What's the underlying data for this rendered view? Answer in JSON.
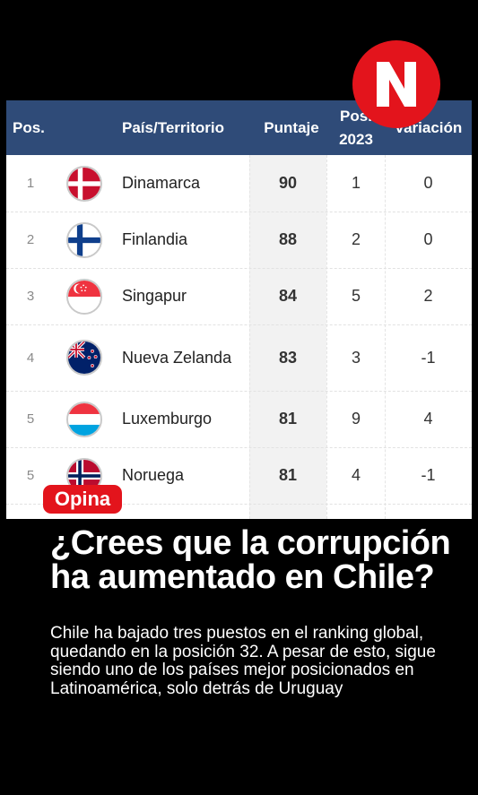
{
  "table": {
    "headers": {
      "pos": "Pos.",
      "country": "País/Territorio",
      "score": "Puntaje",
      "pos2023_line1": "Pos.",
      "pos2023_line2": "2023",
      "variation": "Variación"
    },
    "rows": [
      {
        "pos": "1",
        "country": "Dinamarca",
        "score": "90",
        "pos2023": "1",
        "variation": "0",
        "flag": "denmark-flag-icon"
      },
      {
        "pos": "2",
        "country": "Finlandia",
        "score": "88",
        "pos2023": "2",
        "variation": "0",
        "flag": "finland-flag-icon"
      },
      {
        "pos": "3",
        "country": "Singapur",
        "score": "84",
        "pos2023": "5",
        "variation": "2",
        "flag": "singapore-flag-icon"
      },
      {
        "pos": "4",
        "country": "Nueva Zelanda",
        "score": "83",
        "pos2023": "3",
        "variation": "-1",
        "flag": "new-zealand-flag-icon"
      },
      {
        "pos": "5",
        "country": "Luxemburgo",
        "score": "81",
        "pos2023": "9",
        "variation": "4",
        "flag": "luxembourg-flag-icon"
      },
      {
        "pos": "5",
        "country": "Noruega",
        "score": "81",
        "pos2023": "4",
        "variation": "-1",
        "flag": "norway-flag-icon"
      }
    ]
  },
  "brand": {
    "logo_letter": "N",
    "accent": "#e3141c"
  },
  "badge": {
    "label": "Opina"
  },
  "headline": "¿Crees que la corrupción ha aumentado en Chile?",
  "body": "Chile ha bajado tres puestos en el ranking global, quedando en la posición 32. A pesar de esto, sigue siendo uno de los países mejor posicionados en Latinoamérica, solo detrás de Uruguay",
  "colors": {
    "header_bg": "#2f4b78",
    "background": "#000000"
  }
}
